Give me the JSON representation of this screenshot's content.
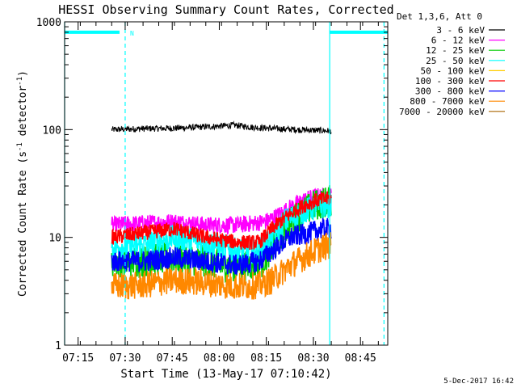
{
  "chart_data": {
    "type": "line",
    "title": "HESSI Observing Summary Count Rates, Corrected",
    "xlabel": "Start Time (13-May-17 07:10:42)",
    "ylabel_parts": {
      "pre": "Corrected Count Rate (s",
      "sup1": "-1",
      "mid": " detector",
      "sup2": "-1",
      "post": ")"
    },
    "timestamp": "5-Dec-2017 16:42",
    "x_unit": "minutes since 07:10:42",
    "xlim": [
      0,
      103
    ],
    "ylim": [
      1,
      1000
    ],
    "y_scale": "log",
    "x_ticks": [
      {
        "value": 4.3,
        "label": "07:15"
      },
      {
        "value": 19.3,
        "label": "07:30"
      },
      {
        "value": 34.3,
        "label": "07:45"
      },
      {
        "value": 49.3,
        "label": "08:00"
      },
      {
        "value": 64.3,
        "label": "08:15"
      },
      {
        "value": 79.3,
        "label": "08:30"
      },
      {
        "value": 94.3,
        "label": "08:45"
      }
    ],
    "y_ticks": [
      {
        "value": 1,
        "label": "1"
      },
      {
        "value": 10,
        "label": "10"
      },
      {
        "value": 100,
        "label": "100"
      },
      {
        "value": 1000,
        "label": "1000"
      }
    ],
    "legend": {
      "header": "Det 1,3,6, Att 0",
      "placement": "top-right outside plot",
      "items": [
        {
          "label": "3 - 6 keV",
          "color": "#000000"
        },
        {
          "label": "6 - 12 keV",
          "color": "#ff00ff"
        },
        {
          "label": "12 - 25 keV",
          "color": "#00cc00"
        },
        {
          "label": "25 - 50 keV",
          "color": "#00ffff"
        },
        {
          "label": "50 - 100 keV",
          "color": "#ffcc00"
        },
        {
          "label": "100 - 300 keV",
          "color": "#ff0000"
        },
        {
          "label": "300 - 800 keV",
          "color": "#0000ff"
        },
        {
          "label": "800 - 7000 keV",
          "color": "#ff8800"
        },
        {
          "label": "7000 - 20000 keV",
          "color": "#aa6600"
        }
      ]
    },
    "night_marker": {
      "label": "N",
      "color": "#00ffff",
      "level": 800,
      "segments": [
        [
          0,
          17.5
        ],
        [
          84.5,
          103
        ]
      ]
    },
    "vertical_lines": [
      {
        "x": 0,
        "style": "solid",
        "color": "#00ffff"
      },
      {
        "x": 19.3,
        "style": "dashed",
        "color": "#00ffff"
      },
      {
        "x": 84.5,
        "style": "solid",
        "color": "#00ffff"
      },
      {
        "x": 101.8,
        "style": "dashed",
        "color": "#00ffff"
      }
    ],
    "series": [
      {
        "name": "3 - 6 keV",
        "color": "#000000",
        "noise": 0.03,
        "points": [
          [
            15,
            100
          ],
          [
            25,
            102
          ],
          [
            35,
            103
          ],
          [
            45,
            106
          ],
          [
            50,
            108
          ],
          [
            54,
            110
          ],
          [
            60,
            105
          ],
          [
            70,
            101
          ],
          [
            78,
            99
          ],
          [
            82,
            98
          ],
          [
            85,
            97
          ]
        ]
      },
      {
        "name": "6 - 12 keV",
        "color": "#ff00ff",
        "noise": 0.08,
        "points": [
          [
            15,
            13
          ],
          [
            25,
            13.5
          ],
          [
            35,
            14
          ],
          [
            45,
            13
          ],
          [
            55,
            13
          ],
          [
            60,
            13.5
          ],
          [
            64,
            14
          ],
          [
            68,
            16
          ],
          [
            72,
            19
          ],
          [
            76,
            22
          ],
          [
            80,
            24
          ],
          [
            85,
            24
          ]
        ]
      },
      {
        "name": "12 - 25 keV",
        "color": "#00cc00",
        "noise": 0.15,
        "points": [
          [
            15,
            6
          ],
          [
            25,
            6
          ],
          [
            35,
            6.5
          ],
          [
            45,
            6
          ],
          [
            50,
            5.5
          ],
          [
            58,
            5.5
          ],
          [
            63,
            6
          ],
          [
            67,
            9
          ],
          [
            71,
            13
          ],
          [
            76,
            17
          ],
          [
            80,
            20
          ],
          [
            85,
            22
          ]
        ]
      },
      {
        "name": "25 - 50 keV",
        "color": "#00ffff",
        "noise": 0.12,
        "points": [
          [
            15,
            8
          ],
          [
            25,
            8.5
          ],
          [
            35,
            10
          ],
          [
            45,
            9
          ],
          [
            55,
            7.5
          ],
          [
            62,
            7.5
          ],
          [
            66,
            10
          ],
          [
            70,
            14
          ],
          [
            75,
            17
          ],
          [
            80,
            19
          ],
          [
            85,
            20
          ]
        ]
      },
      {
        "name": "100 - 300 keV",
        "color": "#ff0000",
        "noise": 0.07,
        "points": [
          [
            15,
            10
          ],
          [
            25,
            11
          ],
          [
            35,
            12
          ],
          [
            45,
            10
          ],
          [
            55,
            9
          ],
          [
            62,
            9
          ],
          [
            66,
            12
          ],
          [
            70,
            15
          ],
          [
            75,
            19
          ],
          [
            80,
            22
          ],
          [
            85,
            23
          ]
        ]
      },
      {
        "name": "300 - 800 keV",
        "color": "#0000ff",
        "noise": 0.1,
        "points": [
          [
            15,
            6
          ],
          [
            25,
            6
          ],
          [
            35,
            6.5
          ],
          [
            45,
            6
          ],
          [
            55,
            5.5
          ],
          [
            62,
            6
          ],
          [
            66,
            7.5
          ],
          [
            72,
            10
          ],
          [
            78,
            11
          ],
          [
            82,
            12
          ],
          [
            85,
            12
          ]
        ]
      },
      {
        "name": "800 - 7000 keV",
        "color": "#ff8800",
        "noise": 0.13,
        "points": [
          [
            15,
            3.5
          ],
          [
            25,
            3.6
          ],
          [
            35,
            4
          ],
          [
            45,
            3.8
          ],
          [
            55,
            3.5
          ],
          [
            62,
            3.6
          ],
          [
            66,
            4
          ],
          [
            72,
            5.5
          ],
          [
            78,
            7
          ],
          [
            82,
            8
          ],
          [
            85,
            8.5
          ]
        ]
      }
    ]
  }
}
